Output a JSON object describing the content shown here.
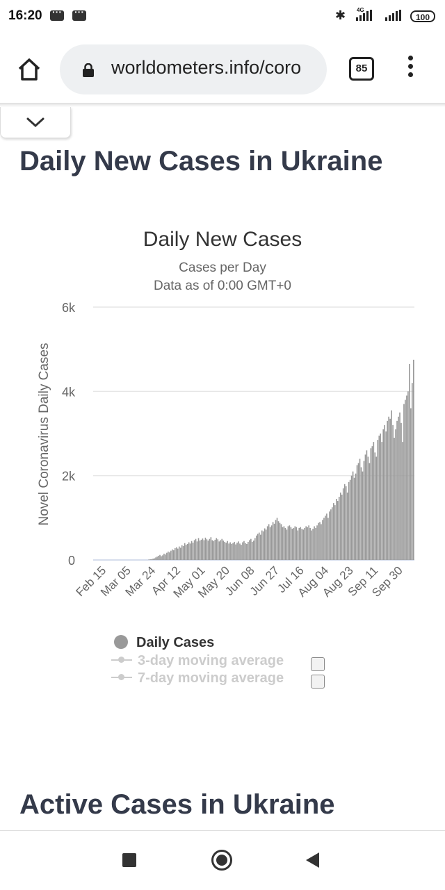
{
  "status_bar": {
    "time": "16:20",
    "network": "4G",
    "battery": "100"
  },
  "browser": {
    "url": "worldometers.info/coro",
    "tab_count": "85"
  },
  "sections": {
    "daily_title": "Daily New Cases in Ukraine",
    "active_title": "Active Cases in Ukraine"
  },
  "chart_data": {
    "type": "bar",
    "title": "Daily New Cases",
    "subtitle": "Cases per Day",
    "subtitle2": "Data as of 0:00 GMT+0",
    "ylabel": "Novel Coronavirus Daily Cases",
    "ylim": [
      0,
      6000
    ],
    "yticks": [
      0,
      2000,
      4000,
      6000
    ],
    "ytick_labels": [
      "0",
      "2k",
      "4k",
      "6k"
    ],
    "xtick_labels": [
      "Feb 15",
      "Mar 05",
      "Mar 24",
      "Apr 12",
      "May 01",
      "May 20",
      "Jun 08",
      "Jun 27",
      "Jul 16",
      "Aug 04",
      "Aug 23",
      "Sep 11",
      "Sep 30"
    ],
    "start_date": "Feb 15",
    "bar_color": "#999999",
    "grid": true,
    "legend": {
      "position": "bottom",
      "items": [
        "Daily Cases",
        "3-day moving average",
        "7-day moving average"
      ]
    },
    "values": [
      0,
      0,
      0,
      0,
      0,
      0,
      0,
      0,
      0,
      0,
      0,
      0,
      0,
      0,
      0,
      0,
      0,
      0,
      0,
      0,
      0,
      0,
      0,
      0,
      0,
      0,
      0,
      0,
      0,
      0,
      0,
      0,
      0,
      0,
      0,
      0,
      0,
      0,
      0,
      0,
      10,
      15,
      20,
      30,
      40,
      60,
      80,
      100,
      120,
      90,
      110,
      150,
      130,
      170,
      200,
      180,
      220,
      250,
      230,
      280,
      300,
      270,
      320,
      290,
      350,
      330,
      400,
      360,
      380,
      420,
      390,
      450,
      410,
      470,
      500,
      440,
      520,
      460,
      480,
      510,
      470,
      530,
      490,
      460,
      500,
      540,
      470,
      450,
      480,
      520,
      490,
      440,
      470,
      500,
      460,
      430,
      410,
      450,
      390,
      420,
      380,
      400,
      430,
      370,
      410,
      440,
      390,
      360,
      420,
      450,
      400,
      380,
      430,
      470,
      500,
      430,
      460,
      520,
      580,
      620,
      650,
      600,
      700,
      680,
      750,
      720,
      800,
      850,
      780,
      820,
      900,
      860,
      950,
      1000,
      920,
      880,
      850,
      780,
      800,
      760,
      720,
      800,
      820,
      780,
      740,
      760,
      800,
      780,
      700,
      760,
      780,
      740,
      720,
      760,
      800,
      780,
      820,
      760,
      700,
      740,
      800,
      760,
      820,
      880,
      900,
      850,
      950,
      1000,
      1050,
      1100,
      1000,
      1150,
      1200,
      1250,
      1350,
      1300,
      1450,
      1400,
      1500,
      1600,
      1550,
      1700,
      1800,
      1750,
      1600,
      1850,
      1900,
      2000,
      2100,
      1950,
      2050,
      2250,
      2300,
      2400,
      2200,
      2100,
      2350,
      2500,
      2600,
      2450,
      2300,
      2650,
      2700,
      2800,
      2550,
      2450,
      2850,
      2950,
      3000,
      2800,
      3100,
      3200,
      3050,
      3300,
      3400,
      3350,
      3550,
      3200,
      2900,
      3100,
      3300,
      3400,
      3500,
      3250,
      2800,
      3700,
      3800,
      3900,
      4000,
      4650,
      3600,
      4200,
      4750
    ]
  }
}
